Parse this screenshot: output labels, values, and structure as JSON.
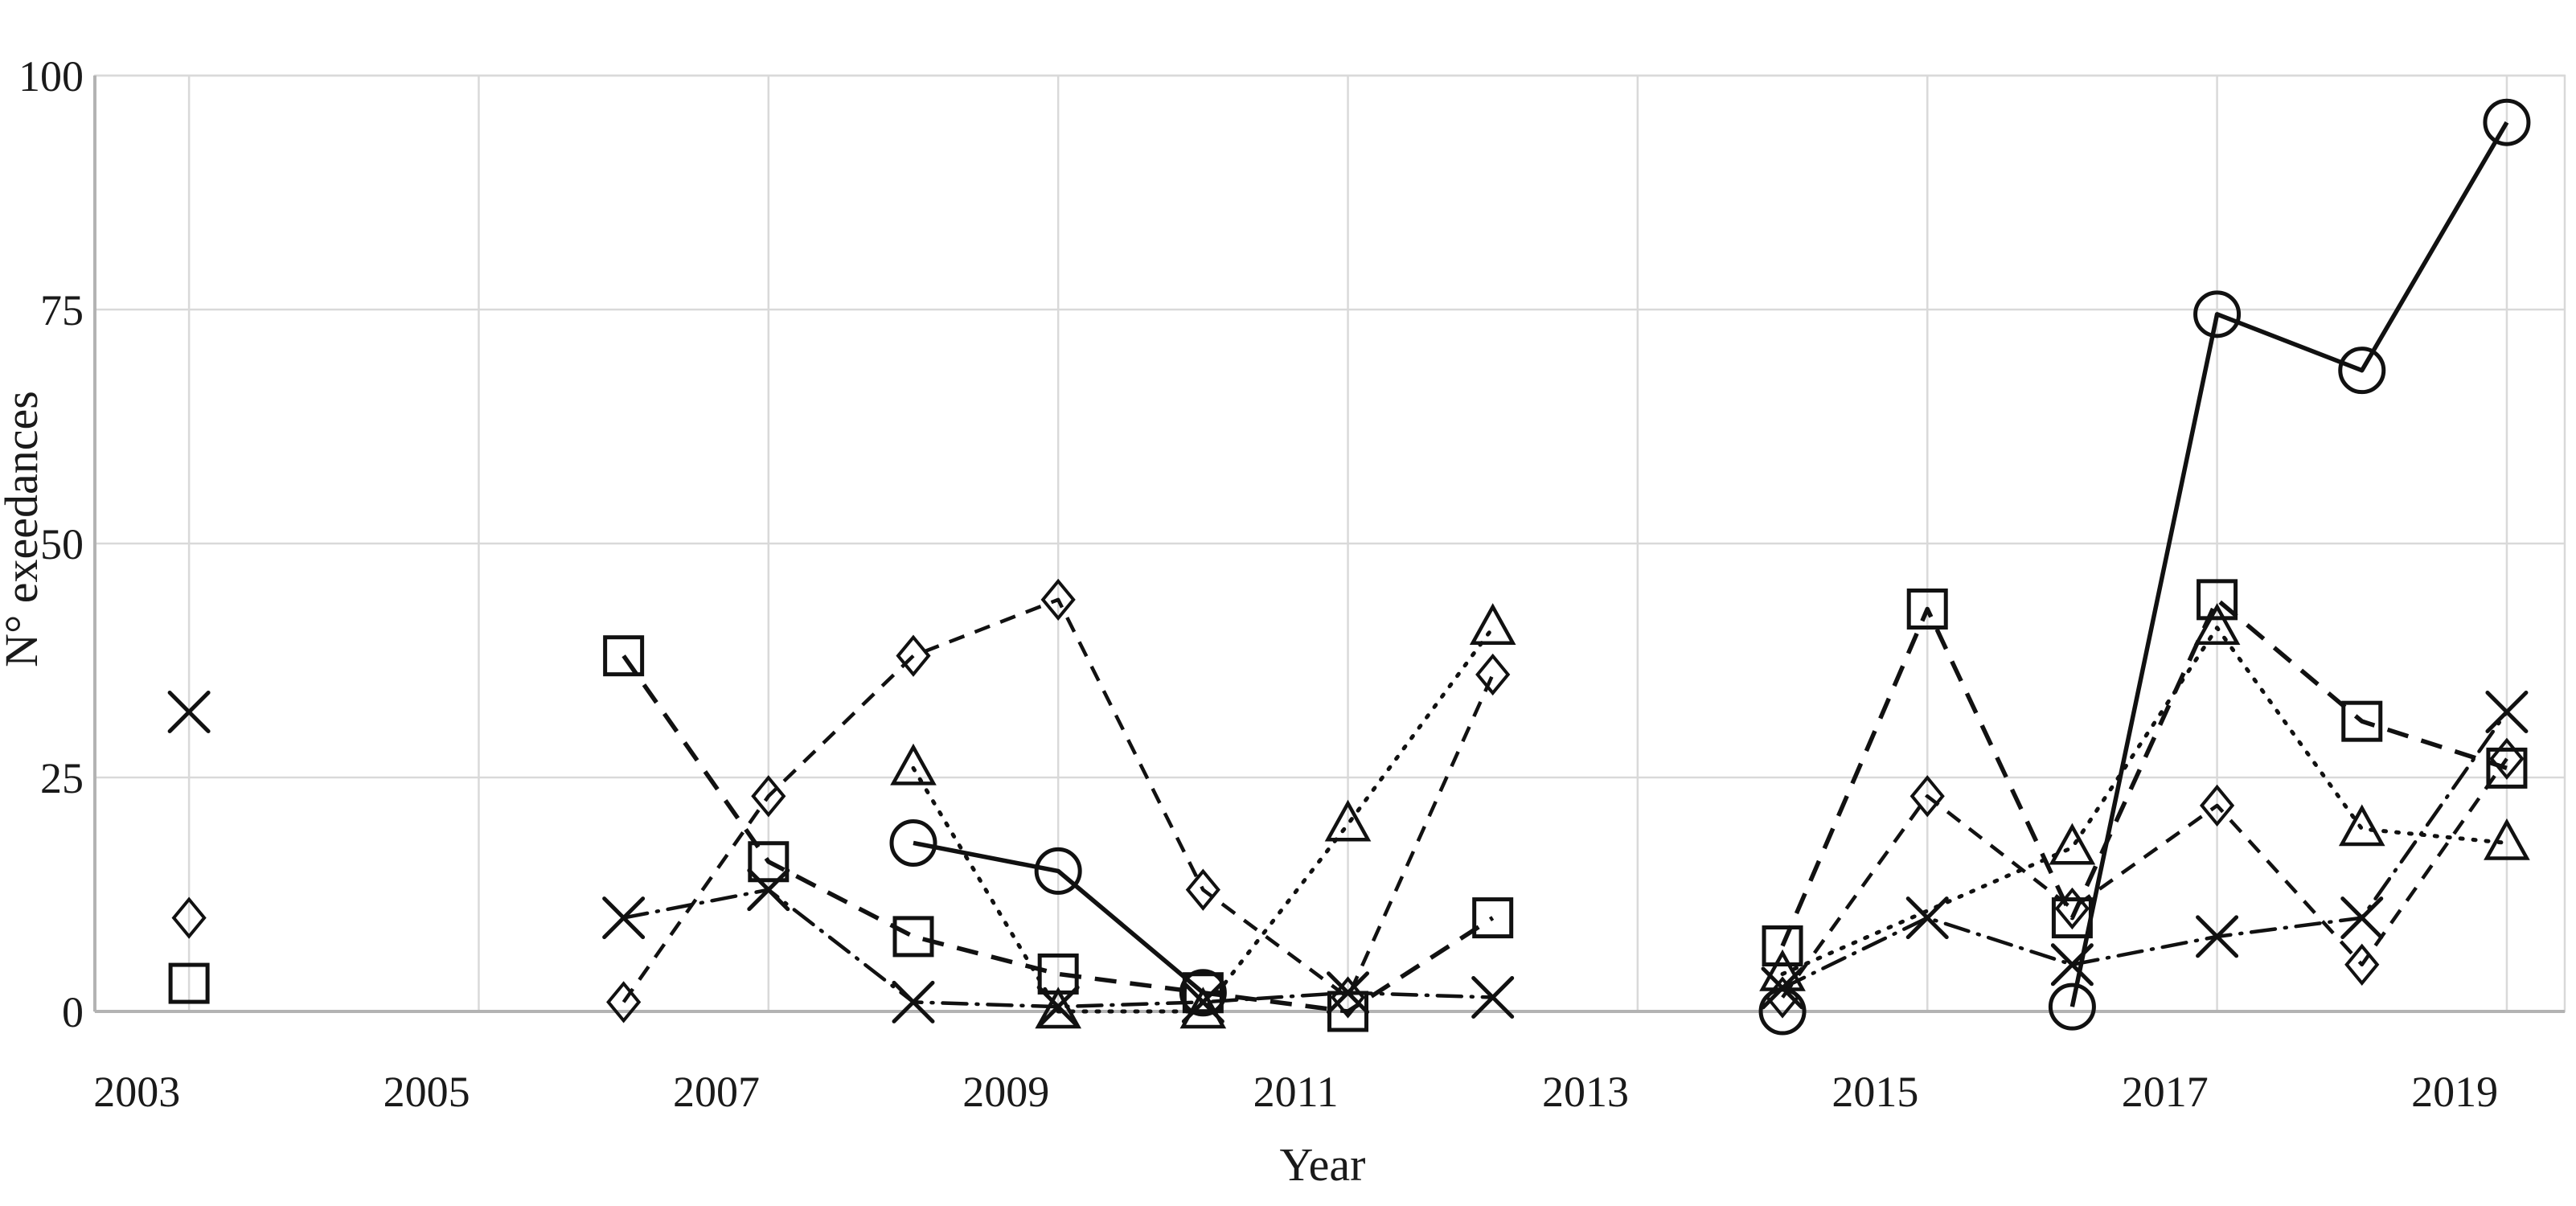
{
  "chart_data": {
    "type": "line",
    "title": "",
    "xlabel": "Year",
    "ylabel": "N° exeedances",
    "xlim": [
      2002.35,
      2019.4
    ],
    "ylim": [
      0,
      100
    ],
    "x_ticks": [
      2003,
      2005,
      2007,
      2009,
      2011,
      2013,
      2015,
      2017,
      2019
    ],
    "y_ticks": [
      0,
      25,
      50,
      75,
      100
    ],
    "tick_label_offset_years": -0.36,
    "grid": true,
    "legend": "none",
    "colors": {
      "series": "#111111",
      "grid": "#d9d9d9",
      "axis": "#b3b3b3",
      "text": "#1a1a1a",
      "background": "#ffffff"
    },
    "series": [
      {
        "name": "circle-solid",
        "marker": "circle",
        "line": "solid",
        "segments": [
          [
            [
              2008,
              18
            ],
            [
              2009,
              15
            ],
            [
              2010,
              2
            ]
          ],
          [
            [
              2014,
              0
            ]
          ],
          [
            [
              2016,
              0.5
            ],
            [
              2017,
              74.5
            ],
            [
              2018,
              68.5
            ],
            [
              2019,
              95
            ]
          ]
        ]
      },
      {
        "name": "square-dashed",
        "marker": "square",
        "line": "dashed",
        "segments": [
          [
            [
              2003,
              3
            ]
          ],
          [
            [
              2006,
              38
            ],
            [
              2007,
              16
            ],
            [
              2008,
              8
            ],
            [
              2009,
              4
            ],
            [
              2010,
              2
            ],
            [
              2011,
              0
            ],
            [
              2012,
              10
            ]
          ],
          [
            [
              2014,
              7
            ],
            [
              2015,
              43
            ],
            [
              2016,
              10
            ],
            [
              2017,
              44
            ],
            [
              2018,
              31
            ],
            [
              2019,
              26
            ]
          ]
        ]
      },
      {
        "name": "diamond-dashed",
        "marker": "diamond",
        "line": "dashed-medium",
        "segments": [
          [
            [
              2003,
              10
            ]
          ],
          [
            [
              2006,
              1
            ],
            [
              2007,
              23
            ],
            [
              2008,
              38
            ],
            [
              2009,
              44
            ],
            [
              2010,
              13
            ],
            [
              2011,
              1.5
            ],
            [
              2012,
              36
            ]
          ],
          [
            [
              2014,
              1.5
            ],
            [
              2015,
              23
            ],
            [
              2016,
              11
            ],
            [
              2017,
              22
            ],
            [
              2018,
              5
            ],
            [
              2019,
              27
            ]
          ]
        ]
      },
      {
        "name": "triangle-dotted",
        "marker": "triangle",
        "line": "dotted",
        "segments": [
          [
            [
              2008,
              26
            ],
            [
              2009,
              0
            ],
            [
              2010,
              0
            ],
            [
              2011,
              20
            ],
            [
              2012,
              41
            ]
          ],
          [
            [
              2014,
              4
            ],
            [
              2016,
              17.5
            ],
            [
              2017,
              41
            ],
            [
              2018,
              19.5
            ],
            [
              2019,
              18
            ]
          ]
        ]
      },
      {
        "name": "x-dashdot",
        "marker": "x",
        "line": "dash-dot",
        "segments": [
          [
            [
              2003,
              32
            ]
          ],
          [
            [
              2006,
              10
            ],
            [
              2007,
              13
            ],
            [
              2008,
              1
            ],
            [
              2009,
              0.5
            ],
            [
              2010,
              1
            ],
            [
              2011,
              2
            ],
            [
              2012,
              1.5
            ]
          ],
          [
            [
              2014,
              2.5
            ],
            [
              2015,
              10
            ],
            [
              2016,
              5
            ],
            [
              2017,
              8
            ],
            [
              2018,
              10
            ],
            [
              2019,
              32
            ]
          ]
        ]
      }
    ]
  }
}
